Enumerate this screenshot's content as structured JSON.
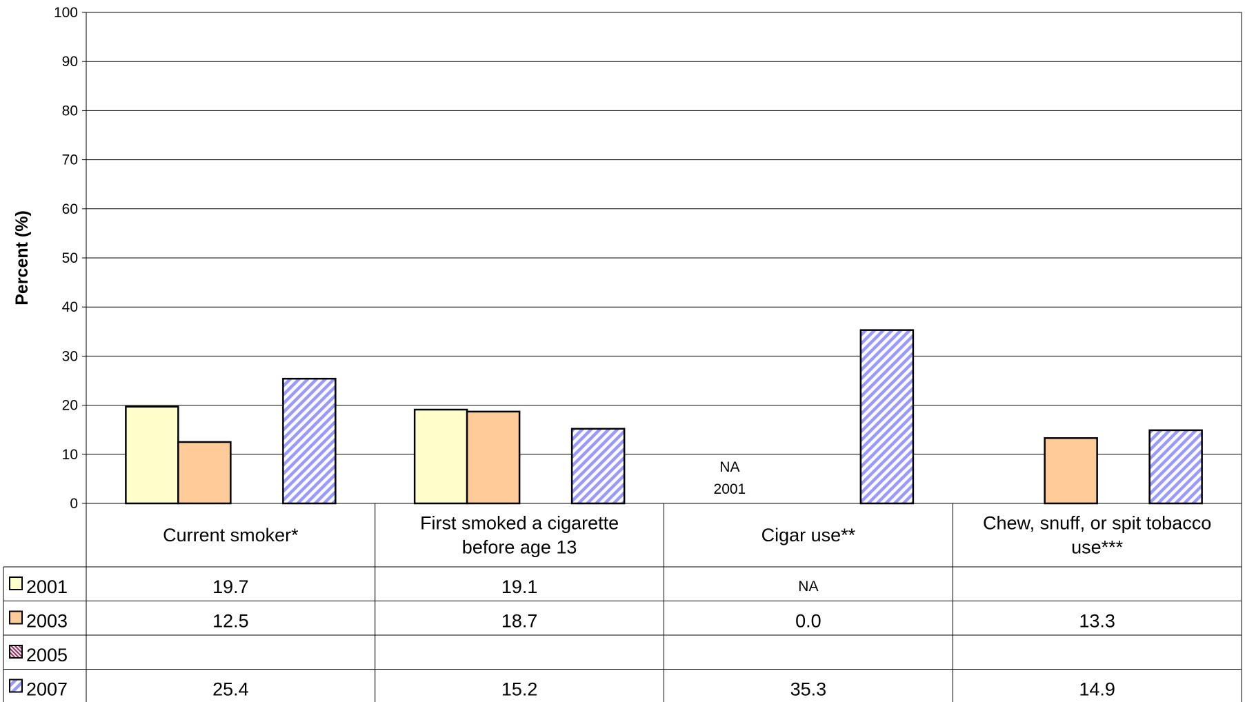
{
  "chart_data": {
    "type": "bar",
    "ylabel": "Percent (%)",
    "ylim": [
      0,
      100
    ],
    "yticks": [
      0,
      10,
      20,
      30,
      40,
      50,
      60,
      70,
      80,
      90,
      100
    ],
    "grid": true,
    "categories": [
      [
        "Current smoker*"
      ],
      [
        "First smoked a cigarette",
        "before age 13"
      ],
      [
        "Cigar use**"
      ],
      [
        "Chew, snuff, or spit tobacco",
        "use***"
      ]
    ],
    "series": [
      {
        "name": "2001",
        "color": "#FFFFCC",
        "pattern": "none",
        "values": [
          19.7,
          19.1,
          null,
          null
        ],
        "table": [
          "19.7",
          "19.1",
          "NA",
          ""
        ]
      },
      {
        "name": "2003",
        "color": "#FFCC99",
        "pattern": "none",
        "values": [
          12.5,
          18.7,
          0.0,
          13.3
        ],
        "table": [
          "12.5",
          "18.7",
          "0.0",
          "13.3"
        ]
      },
      {
        "name": "2005",
        "color": "#993366",
        "pattern": "dense-diagonal",
        "values": [
          null,
          null,
          null,
          null
        ],
        "table": [
          "",
          "",
          "",
          ""
        ]
      },
      {
        "name": "2007",
        "color": "#9999FF",
        "pattern": "wide-diagonal",
        "values": [
          25.4,
          15.2,
          35.3,
          14.9
        ],
        "table": [
          "25.4",
          "15.2",
          "35.3",
          "14.9"
        ]
      }
    ],
    "annotations": [
      {
        "category": 2,
        "text": [
          "NA",
          "2001"
        ]
      }
    ]
  }
}
